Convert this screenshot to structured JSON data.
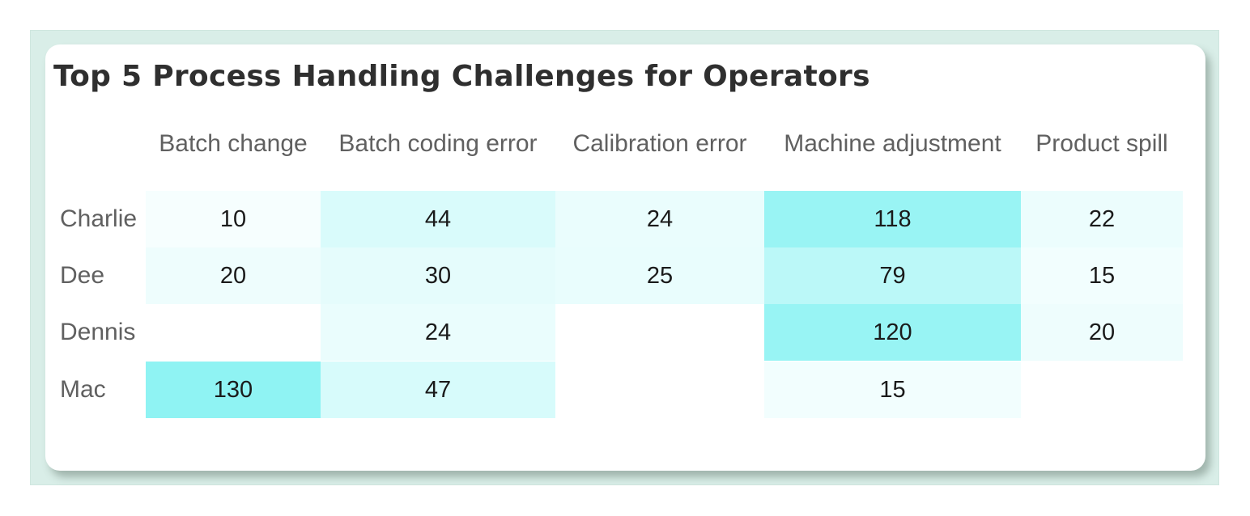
{
  "chart_data": {
    "type": "table",
    "title": "Top 5 Process Handling Challenges for Operators",
    "columns": [
      "Batch change",
      "Batch coding error",
      "Calibration error",
      "Machine adjustment",
      "Product spill"
    ],
    "rows": [
      {
        "label": "Charlie",
        "values": [
          10,
          44,
          24,
          118,
          22
        ]
      },
      {
        "label": "Dee",
        "values": [
          20,
          30,
          25,
          79,
          15
        ]
      },
      {
        "label": "Dennis",
        "values": [
          null,
          24,
          null,
          120,
          20
        ]
      },
      {
        "label": "Mac",
        "values": [
          130,
          47,
          null,
          15,
          null
        ]
      }
    ],
    "heatmap_color": "#8ff3f3",
    "heatmap_min_color": "#ffffff"
  }
}
